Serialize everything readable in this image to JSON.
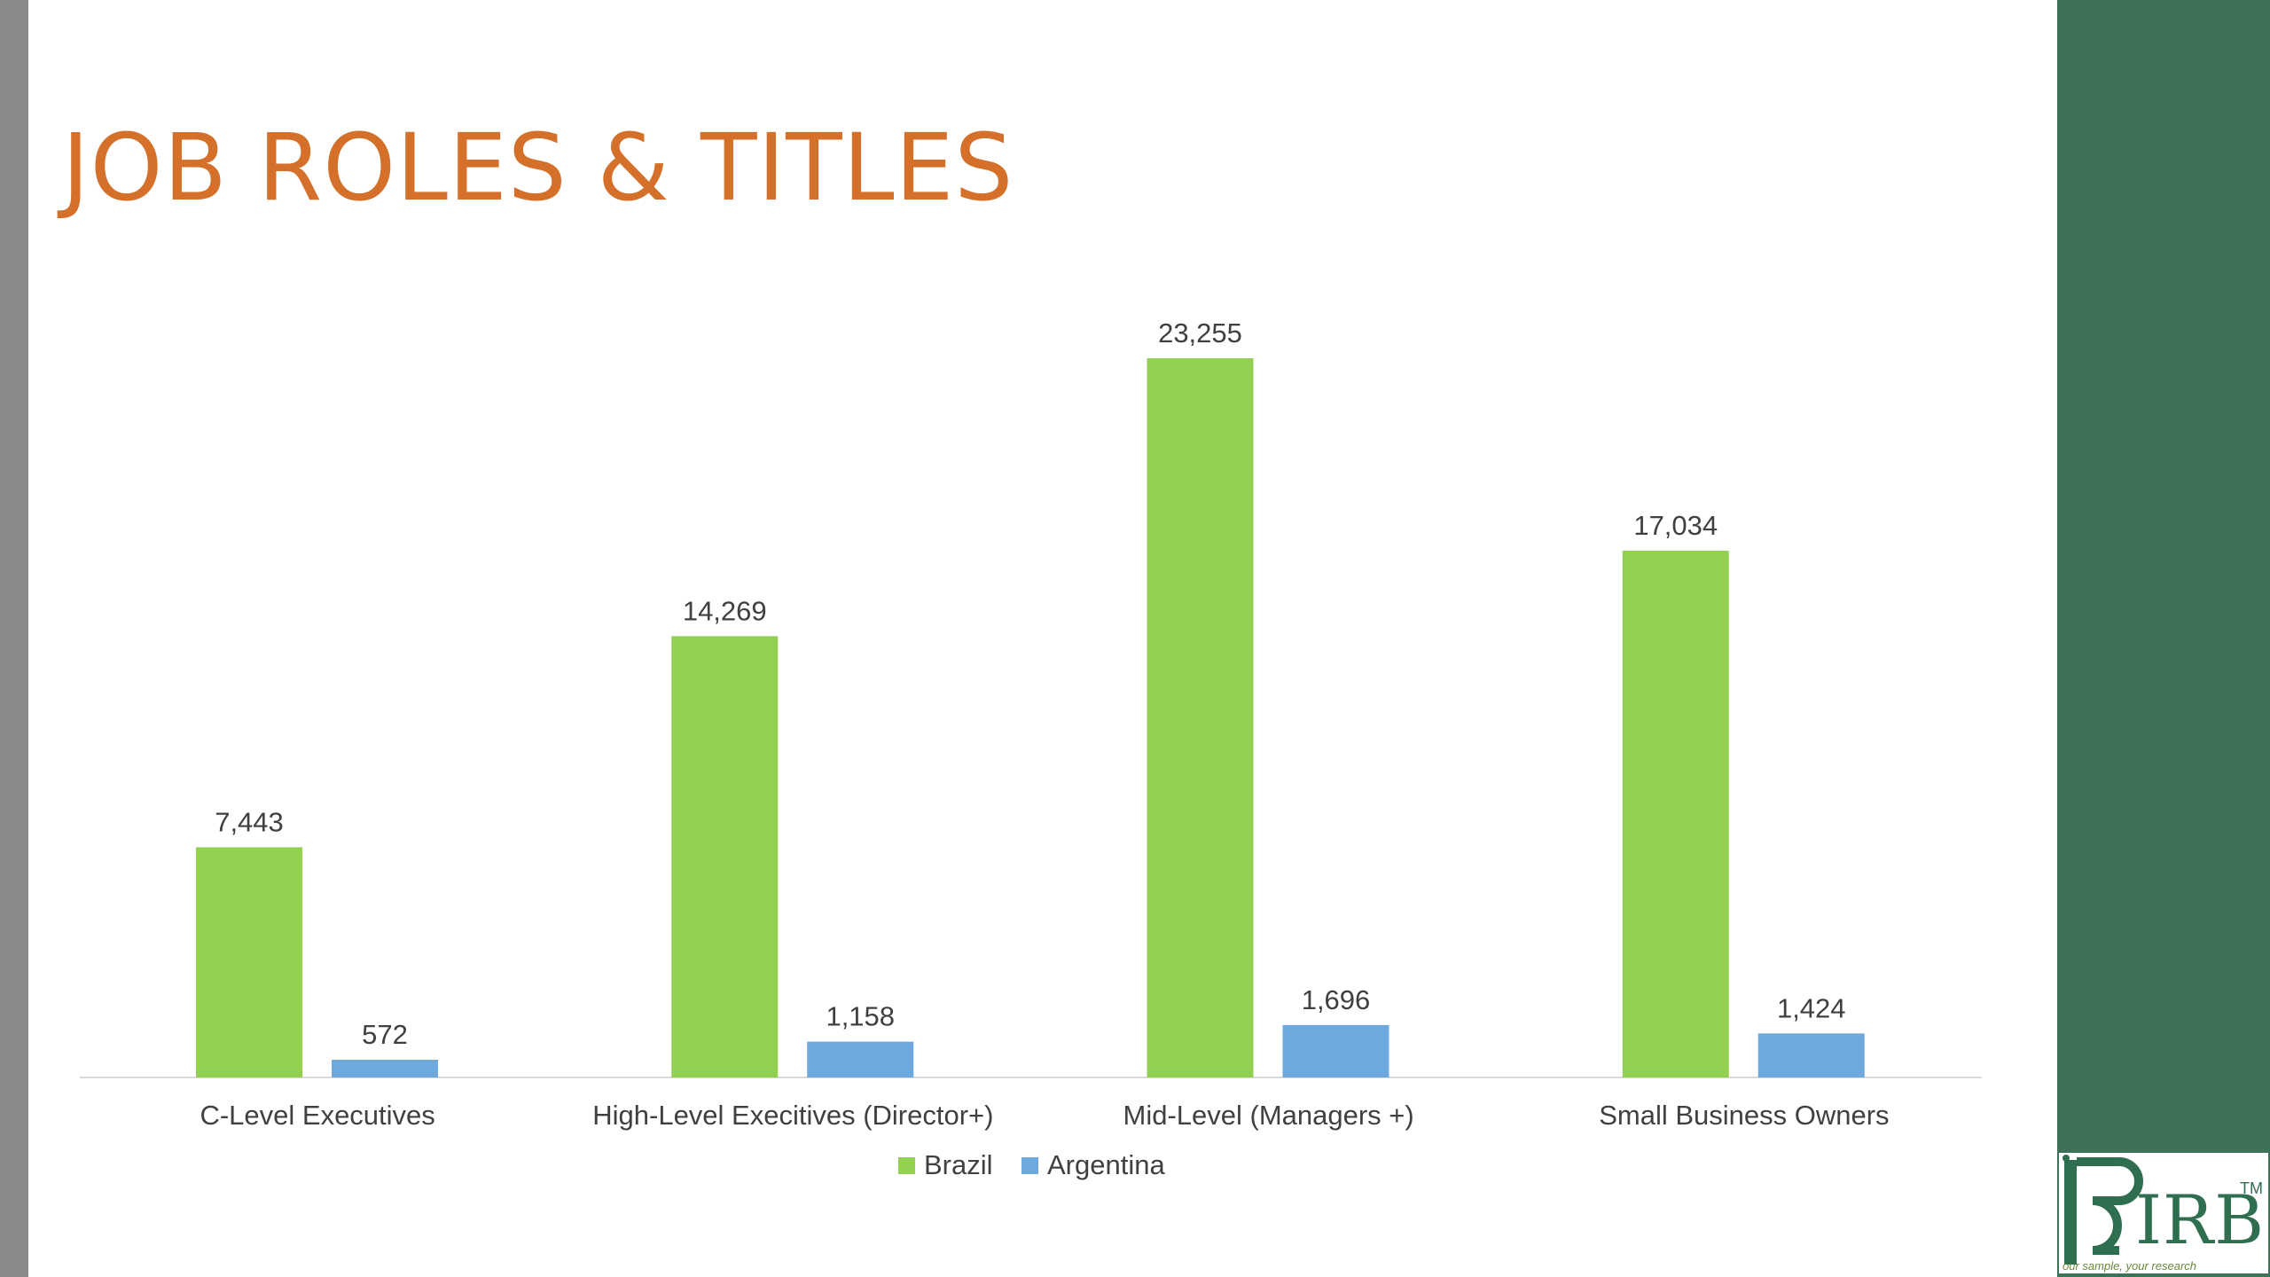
{
  "slide": {
    "title": "JOB ROLES & TITLES"
  },
  "logo": {
    "text": "IRB",
    "tm": "TM",
    "tagline": "our sample, your research"
  },
  "colors": {
    "title": "#d4702a",
    "brazil": "#92d050",
    "argentina": "#6fa8dc",
    "side_panel": "#3d7158",
    "axis": "#d9d9d9",
    "label_text": "#404040"
  },
  "chart_data": {
    "type": "bar",
    "categories": [
      "C-Level Executives",
      "High-Level Execitives (Director+)",
      "Mid-Level (Managers +)",
      "Small Business Owners"
    ],
    "series": [
      {
        "name": "Brazil",
        "values": [
          7443,
          14269,
          23255,
          17034
        ],
        "labels": [
          "7,443",
          "14,269",
          "23,255",
          "17,034"
        ],
        "color": "#92d050"
      },
      {
        "name": "Argentina",
        "values": [
          572,
          1158,
          1696,
          1424
        ],
        "labels": [
          "572",
          "1,158",
          "1,696",
          "1,424"
        ],
        "color": "#6fa8dc"
      }
    ],
    "ylim": [
      0,
      23255
    ],
    "grid": false,
    "legend": "bottom",
    "data_labels": true
  }
}
